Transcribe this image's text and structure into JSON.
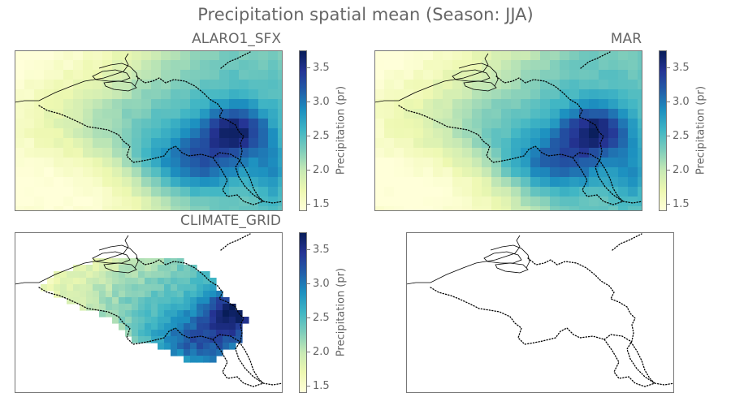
{
  "title": "Precipitation spatial mean (Season: JJA)",
  "panels": [
    {
      "title": "ALARO1_SFX",
      "mode": "model",
      "seed": 11,
      "has_colorbar": true
    },
    {
      "title": "MAR",
      "mode": "model",
      "seed": 29,
      "has_colorbar": true
    },
    {
      "title": "CLIMATE_GRID",
      "mode": "obs",
      "seed": 47,
      "has_colorbar": true
    },
    {
      "title": "",
      "mode": "blank",
      "seed": 0,
      "has_colorbar": false
    }
  ],
  "colorbar": {
    "label": "Precipitation (pr)",
    "vmin": 1.4,
    "vmax": 3.75,
    "ticks": [
      "1.5",
      "2.0",
      "2.5",
      "3.0",
      "3.5"
    ],
    "colormap": "YlGnBu",
    "colors": [
      "#ffffd9",
      "#edf8b1",
      "#c7e9b4",
      "#7fcdbb",
      "#41b6c4",
      "#1d91c0",
      "#225ea8",
      "#253494",
      "#081d58"
    ]
  }
}
